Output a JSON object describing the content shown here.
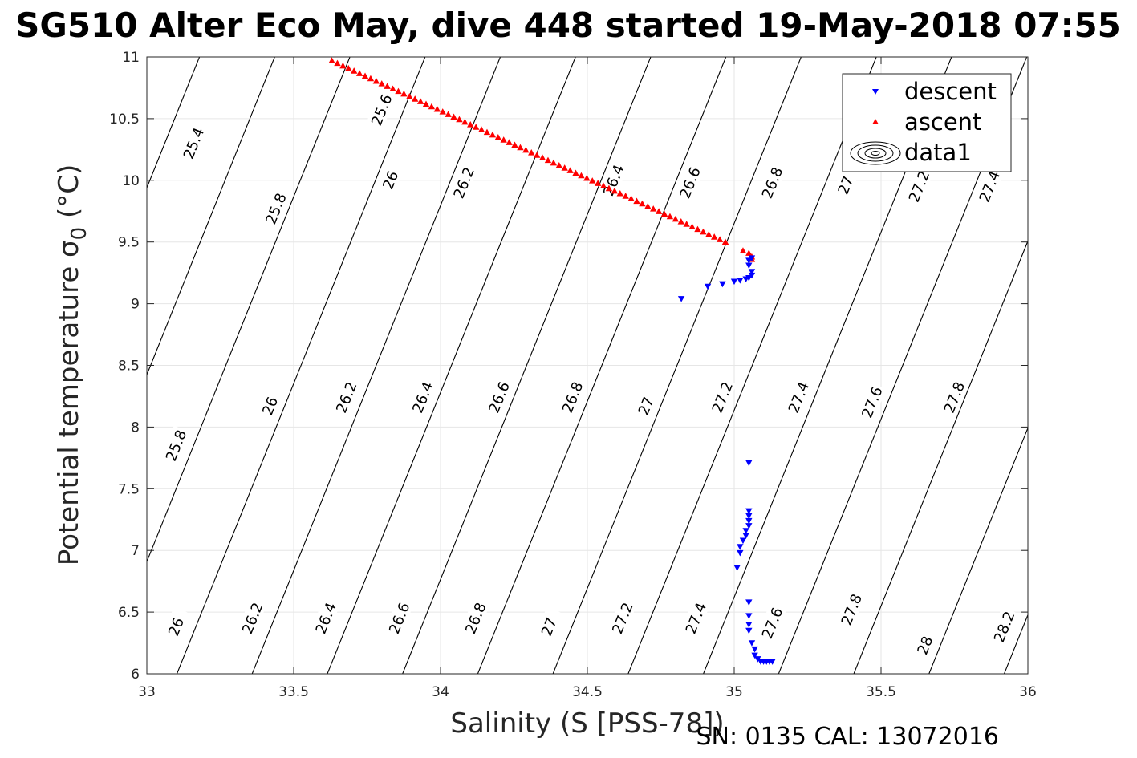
{
  "figure": {
    "title": "SG510 Alter Eco May, dive 448 started 19-May-2018 07:55",
    "footer": "SN: 0135  CAL: 13072016"
  },
  "chart_data": {
    "type": "scatter",
    "xlabel": "Salinity (S [PSS-78])",
    "ylabel_main": "Potential temperature σ",
    "ylabel_sub": "0",
    "ylabel_unit": " (°C)",
    "xlim": [
      33,
      36
    ],
    "ylim": [
      6,
      11
    ],
    "x_ticks": [
      33,
      33.5,
      34,
      34.5,
      35,
      35.5,
      36
    ],
    "x_tick_labels": [
      "33",
      "33.5",
      "34",
      "34.5",
      "35",
      "35.5",
      "36"
    ],
    "y_ticks": [
      6,
      6.5,
      7,
      7.5,
      8,
      8.5,
      9,
      9.5,
      10,
      10.5,
      11
    ],
    "y_tick_labels": [
      "6",
      "6.5",
      "7",
      "7.5",
      "8",
      "8.5",
      "9",
      "9.5",
      "10",
      "10.5",
      "11"
    ],
    "grid": true,
    "legend_position": "top-right",
    "series": [
      {
        "name": "descent",
        "marker": "triangle-down",
        "color": "#0000ff",
        "points": [
          [
            34.82,
            9.04
          ],
          [
            34.91,
            9.14
          ],
          [
            34.96,
            9.16
          ],
          [
            35.0,
            9.18
          ],
          [
            35.02,
            9.19
          ],
          [
            35.04,
            9.2
          ],
          [
            35.05,
            9.21
          ],
          [
            35.06,
            9.23
          ],
          [
            35.06,
            9.26
          ],
          [
            35.05,
            9.31
          ],
          [
            35.05,
            9.35
          ],
          [
            35.06,
            9.37
          ],
          [
            35.05,
            7.71
          ],
          [
            35.05,
            7.32
          ],
          [
            35.05,
            7.28
          ],
          [
            35.05,
            7.24
          ],
          [
            35.05,
            7.2
          ],
          [
            35.04,
            7.16
          ],
          [
            35.04,
            7.12
          ],
          [
            35.03,
            7.08
          ],
          [
            35.02,
            7.03
          ],
          [
            35.02,
            6.98
          ],
          [
            35.01,
            6.86
          ],
          [
            35.05,
            6.58
          ],
          [
            35.05,
            6.47
          ],
          [
            35.05,
            6.4
          ],
          [
            35.05,
            6.35
          ],
          [
            35.06,
            6.25
          ],
          [
            35.07,
            6.2
          ],
          [
            35.07,
            6.15
          ],
          [
            35.08,
            6.12
          ],
          [
            35.09,
            6.1
          ],
          [
            35.1,
            6.1
          ],
          [
            35.11,
            6.1
          ],
          [
            35.12,
            6.1
          ],
          [
            35.13,
            6.1
          ]
        ]
      },
      {
        "name": "ascent",
        "marker": "triangle-up",
        "color": "#ff0000",
        "line": {
          "x0": 33.63,
          "y0": 10.97,
          "x1": 34.97,
          "y1": 9.5,
          "count": 72
        },
        "points": [
          [
            35.03,
            9.43
          ],
          [
            35.05,
            9.41
          ],
          [
            35.06,
            9.38
          ],
          [
            35.06,
            9.36
          ]
        ]
      },
      {
        "name": "data1",
        "kind": "isopycnal-contours",
        "color": "#000000",
        "levels": [
          25.4,
          25.6,
          25.8,
          26,
          26.2,
          26.4,
          26.6,
          26.8,
          27,
          27.2,
          27.4,
          27.6,
          27.8,
          28,
          28.2
        ]
      }
    ],
    "contour_labels": [
      {
        "text": "25.4",
        "x": 33.16,
        "y": 10.3
      },
      {
        "text": "25.6",
        "x": 33.8,
        "y": 10.57
      },
      {
        "text": "25.8",
        "x": 33.44,
        "y": 9.77
      },
      {
        "text": "26",
        "x": 33.83,
        "y": 10.0
      },
      {
        "text": "26.2",
        "x": 34.08,
        "y": 9.98
      },
      {
        "text": "26.4",
        "x": 34.59,
        "y": 10.0
      },
      {
        "text": "26.6",
        "x": 34.85,
        "y": 9.98
      },
      {
        "text": "26.8",
        "x": 35.13,
        "y": 9.98
      },
      {
        "text": "27",
        "x": 35.38,
        "y": 9.96
      },
      {
        "text": "27.2",
        "x": 35.63,
        "y": 9.95
      },
      {
        "text": "27.4",
        "x": 35.87,
        "y": 9.95
      },
      {
        "text": "27.6",
        "x": 36.1,
        "y": 9.93
      },
      {
        "text": "25.8",
        "x": 33.1,
        "y": 7.85
      },
      {
        "text": "26",
        "x": 33.42,
        "y": 8.17
      },
      {
        "text": "26.2",
        "x": 33.68,
        "y": 8.24
      },
      {
        "text": "26.4",
        "x": 33.94,
        "y": 8.24
      },
      {
        "text": "26.6",
        "x": 34.2,
        "y": 8.24
      },
      {
        "text": "26.8",
        "x": 34.45,
        "y": 8.24
      },
      {
        "text": "27",
        "x": 34.7,
        "y": 8.17
      },
      {
        "text": "27.2",
        "x": 34.96,
        "y": 8.24
      },
      {
        "text": "27.4",
        "x": 35.22,
        "y": 8.24
      },
      {
        "text": "27.6",
        "x": 35.47,
        "y": 8.2
      },
      {
        "text": "27.8",
        "x": 35.75,
        "y": 8.24
      },
      {
        "text": "28",
        "x": 36.0,
        "y": 8.0
      },
      {
        "text": "26",
        "x": 33.1,
        "y": 6.38
      },
      {
        "text": "26.2",
        "x": 33.36,
        "y": 6.45
      },
      {
        "text": "26.4",
        "x": 33.61,
        "y": 6.45
      },
      {
        "text": "26.6",
        "x": 33.86,
        "y": 6.45
      },
      {
        "text": "26.8",
        "x": 34.12,
        "y": 6.45
      },
      {
        "text": "27",
        "x": 34.37,
        "y": 6.38
      },
      {
        "text": "27.2",
        "x": 34.62,
        "y": 6.45
      },
      {
        "text": "27.4",
        "x": 34.87,
        "y": 6.45
      },
      {
        "text": "27.6",
        "x": 35.13,
        "y": 6.41
      },
      {
        "text": "27.8",
        "x": 35.4,
        "y": 6.52
      },
      {
        "text": "28",
        "x": 35.65,
        "y": 6.23
      },
      {
        "text": "28.2",
        "x": 35.92,
        "y": 6.38
      }
    ]
  }
}
